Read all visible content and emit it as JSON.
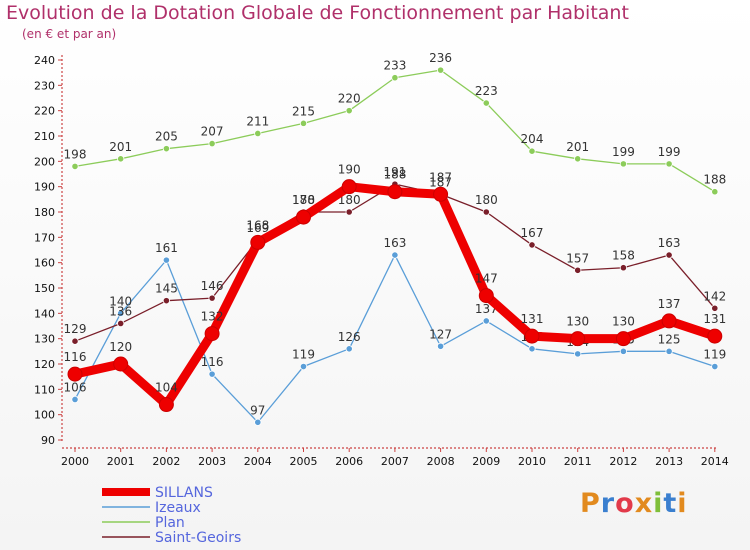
{
  "title": "Evolution de la Dotation Globale de Fonctionnement par Habitant",
  "subtitle": "(en € et par an)",
  "logo": {
    "text": "Proxiti",
    "letters": [
      "P",
      "r",
      "o",
      "x",
      "i",
      "t",
      "i"
    ],
    "colors": [
      "#e28a1e",
      "#3a7fcf",
      "#e23a4a",
      "#e28a1e",
      "#7fbf3a",
      "#3a7fcf",
      "#e28a1e"
    ]
  },
  "chart_data": {
    "type": "line",
    "categories": [
      "2000",
      "2001",
      "2002",
      "2003",
      "2004",
      "2005",
      "2006",
      "2007",
      "2008",
      "2009",
      "2010",
      "2011",
      "2012",
      "2013",
      "2014"
    ],
    "ylim": [
      90,
      240
    ],
    "yticks": [
      90,
      100,
      110,
      120,
      130,
      140,
      150,
      160,
      170,
      180,
      190,
      200,
      210,
      220,
      230,
      240
    ],
    "grid": false,
    "legend_position": "bottom-left",
    "series": [
      {
        "name": "Plan",
        "color": "#8ccc5a",
        "values": [
          198,
          201,
          205,
          207,
          211,
          215,
          220,
          233,
          236,
          223,
          204,
          201,
          199,
          199,
          188
        ]
      },
      {
        "name": "Izeaux",
        "color": "#5a9ed8",
        "values": [
          106,
          140,
          161,
          116,
          97,
          119,
          126,
          163,
          127,
          137,
          126,
          124,
          125,
          125,
          119
        ]
      },
      {
        "name": "Saint-Geoirs",
        "color": "#7a1f2a",
        "values": [
          129,
          136,
          145,
          146,
          169,
          180,
          180,
          191,
          187,
          180,
          167,
          157,
          158,
          163,
          142
        ]
      },
      {
        "name": "SILLANS",
        "color": "#ee0000",
        "values": [
          116,
          120,
          104,
          132,
          168,
          178,
          190,
          188,
          187,
          147,
          131,
          130,
          130,
          137,
          131
        ]
      }
    ],
    "legend": [
      "SILLANS",
      "Izeaux",
      "Plan",
      "Saint-Geoirs"
    ]
  }
}
